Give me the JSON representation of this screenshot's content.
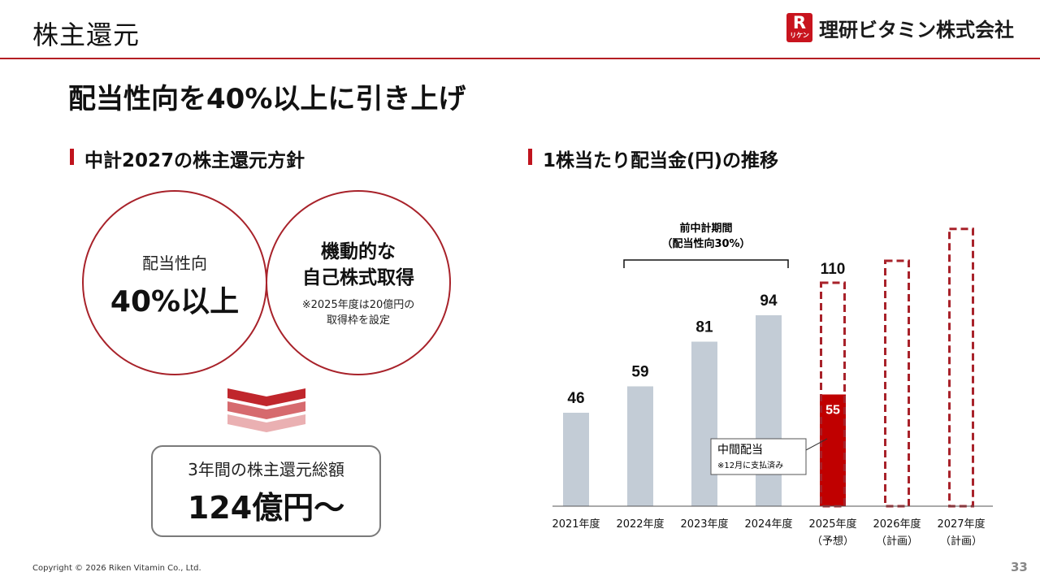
{
  "header": {
    "title": "株主還元",
    "company": "理研ビタミン株式会社",
    "logo_letter": "R",
    "logo_kana": "リケン"
  },
  "headline": "配当性向を40%以上に引き上げ",
  "left_section": {
    "title": "中計2027の株主還元方針",
    "circle1": {
      "label": "配当性向",
      "value": "40%以上"
    },
    "circle2": {
      "line1": "機動的な",
      "line2": "自己株式取得",
      "note1": "※2025年度は20億円の",
      "note2": "取得枠を設定"
    },
    "total": {
      "label": "3年間の株主還元総額",
      "value": "124億円～"
    }
  },
  "right_section": {
    "title": "1株当たり配当金(円)の推移",
    "bracket_label1": "前中計期間",
    "bracket_label2": "（配当性向30%）",
    "callout_title": "中間配当",
    "callout_note": "※12月に支払済み"
  },
  "chart_data": {
    "type": "bar",
    "title": "1株当たり配当金(円)の推移",
    "categories": [
      "2021年度",
      "2022年度",
      "2023年度",
      "2024年度",
      "2025年度",
      "2026年度",
      "2027年度"
    ],
    "category_sublabels": [
      "",
      "",
      "",
      "",
      "（予想）",
      "（計画）",
      "（計画）"
    ],
    "values": [
      46,
      59,
      81,
      94,
      110,
      null,
      null
    ],
    "value_labels": [
      "46",
      "59",
      "81",
      "94",
      "110",
      "",
      ""
    ],
    "interim_dividend": {
      "category": "2025年度",
      "value": 55,
      "label": "55"
    },
    "planned_heights_relative": [
      null,
      null,
      null,
      null,
      null,
      1.0,
      1.13
    ],
    "ylim": [
      0,
      120
    ],
    "grid": false,
    "colors": {
      "actual": "#c3ccd6",
      "interim": "#c00000",
      "outline": "#a8222a"
    }
  },
  "footer": {
    "copyright": "Copyright © 2026 Riken Vitamin Co., Ltd.",
    "page": "33"
  }
}
